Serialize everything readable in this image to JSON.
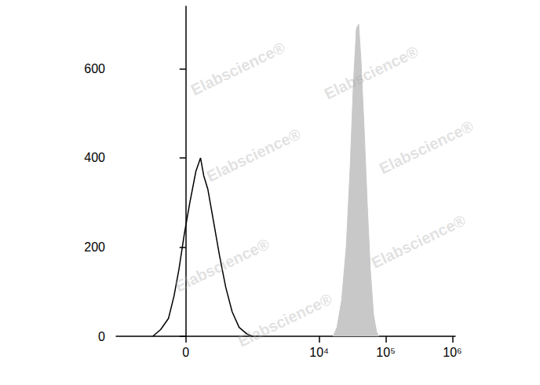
{
  "chart_data": {
    "type": "line",
    "annotations": [
      "Elabscience®"
    ],
    "xlim": [
      -1100,
      1100000
    ],
    "xticks": [
      0,
      {
        "value": 10000,
        "label": "10⁴"
      },
      {
        "value": 100000,
        "label": "10⁵"
      },
      {
        "value": 1000000,
        "label": "10⁶"
      }
    ],
    "ylim": [
      0,
      740
    ],
    "yticks": [
      0,
      200,
      400,
      600
    ],
    "grid": false,
    "series": [
      {
        "type": "area",
        "color": "#c8c8c8",
        "x": [
          16200,
          18500,
          21700,
          25500,
          29200,
          32500,
          36200,
          39200,
          42400,
          47200,
          52600,
          58600,
          65300,
          72600,
          78600
        ],
        "values": [
          0,
          20,
          80,
          200,
          380,
          560,
          690,
          700,
          620,
          470,
          300,
          150,
          50,
          10,
          0
        ]
      },
      {
        "type": "line",
        "color": "#000000",
        "x": [
          -281,
          -197,
          -127,
          -84,
          -48,
          -10,
          28,
          71,
          106,
          132,
          167,
          220,
          290,
          372,
          475,
          614,
          814,
          988
        ],
        "values": [
          0,
          15,
          40,
          90,
          150,
          230,
          300,
          370,
          400,
          360,
          330,
          260,
          180,
          110,
          55,
          20,
          5,
          0
        ]
      }
    ]
  }
}
